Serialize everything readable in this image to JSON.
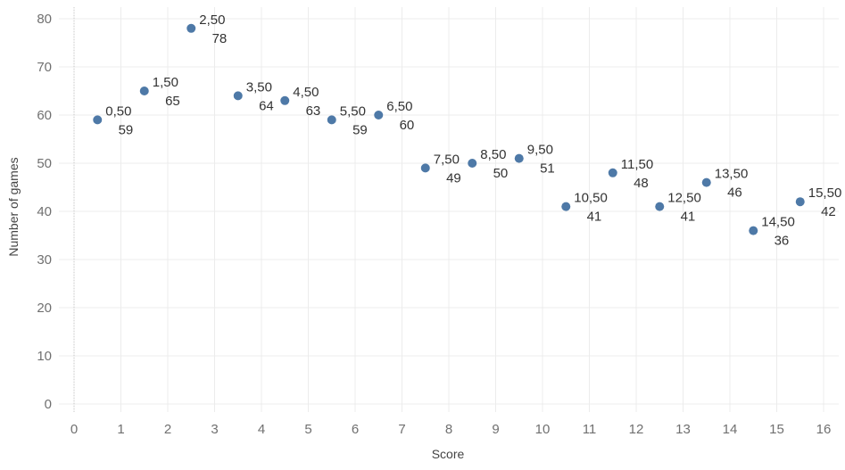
{
  "chart_data": {
    "type": "scatter",
    "xlabel": "Score",
    "ylabel": "Number of games",
    "xlim": [
      0,
      16
    ],
    "ylim": [
      0,
      80
    ],
    "x_ticks": [
      "0",
      "1",
      "2",
      "3",
      "4",
      "5",
      "6",
      "7",
      "8",
      "9",
      "10",
      "11",
      "12",
      "13",
      "14",
      "15",
      "16"
    ],
    "y_ticks": [
      "0",
      "10",
      "20",
      "30",
      "40",
      "50",
      "60",
      "70",
      "80"
    ],
    "grid": true,
    "marker_color": "#4e79a7",
    "points": [
      {
        "x": 0.5,
        "y": 59,
        "x_label": "0,50",
        "y_label": "59"
      },
      {
        "x": 1.5,
        "y": 65,
        "x_label": "1,50",
        "y_label": "65"
      },
      {
        "x": 2.5,
        "y": 78,
        "x_label": "2,50",
        "y_label": "78"
      },
      {
        "x": 3.5,
        "y": 64,
        "x_label": "3,50",
        "y_label": "64"
      },
      {
        "x": 4.5,
        "y": 63,
        "x_label": "4,50",
        "y_label": "63"
      },
      {
        "x": 5.5,
        "y": 59,
        "x_label": "5,50",
        "y_label": "59"
      },
      {
        "x": 6.5,
        "y": 60,
        "x_label": "6,50",
        "y_label": "60"
      },
      {
        "x": 7.5,
        "y": 49,
        "x_label": "7,50",
        "y_label": "49"
      },
      {
        "x": 8.5,
        "y": 50,
        "x_label": "8,50",
        "y_label": "50"
      },
      {
        "x": 9.5,
        "y": 51,
        "x_label": "9,50",
        "y_label": "51"
      },
      {
        "x": 10.5,
        "y": 41,
        "x_label": "10,50",
        "y_label": "41"
      },
      {
        "x": 11.5,
        "y": 48,
        "x_label": "11,50",
        "y_label": "48"
      },
      {
        "x": 12.5,
        "y": 41,
        "x_label": "12,50",
        "y_label": "41"
      },
      {
        "x": 13.5,
        "y": 46,
        "x_label": "13,50",
        "y_label": "46"
      },
      {
        "x": 14.5,
        "y": 36,
        "x_label": "14,50",
        "y_label": "36"
      },
      {
        "x": 15.5,
        "y": 42,
        "x_label": "15,50",
        "y_label": "42"
      }
    ]
  }
}
